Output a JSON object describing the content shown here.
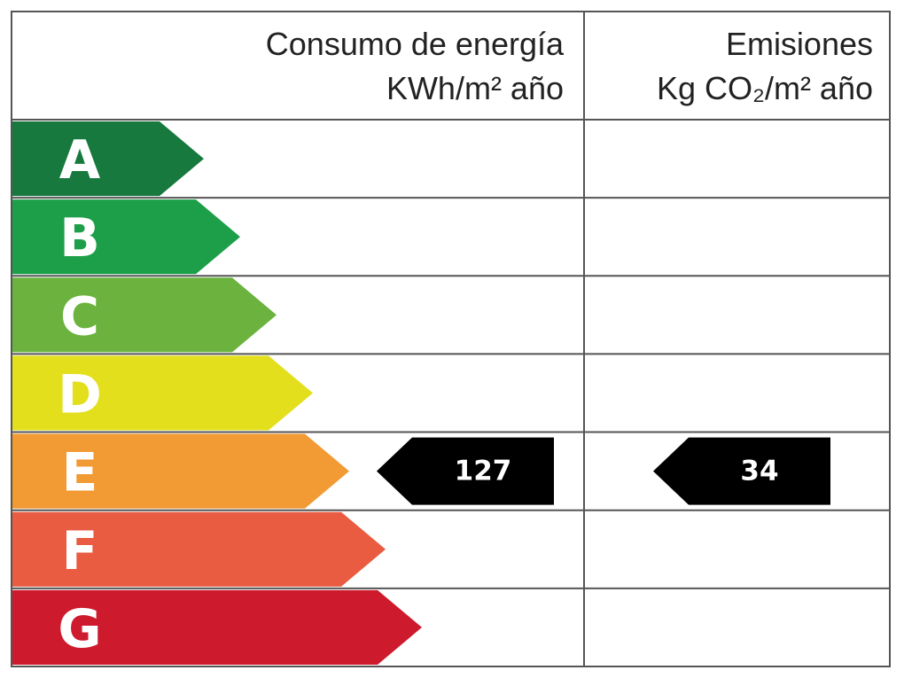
{
  "header": {
    "energy_title": "Consumo de energía",
    "energy_unit": "KWh/m² año",
    "emissions_title": "Emisiones",
    "emissions_unit": "Kg CO₂/m² año"
  },
  "rows": [
    {
      "letter": "A",
      "color": "#17793d"
    },
    {
      "letter": "B",
      "color": "#1c9f48"
    },
    {
      "letter": "C",
      "color": "#6bb33e"
    },
    {
      "letter": "D",
      "color": "#e3df1c"
    },
    {
      "letter": "E",
      "color": "#f29a33",
      "energy": 127,
      "emissions": 34
    },
    {
      "letter": "F",
      "color": "#e95c41"
    },
    {
      "letter": "G",
      "color": "#cd1a2c"
    }
  ]
}
